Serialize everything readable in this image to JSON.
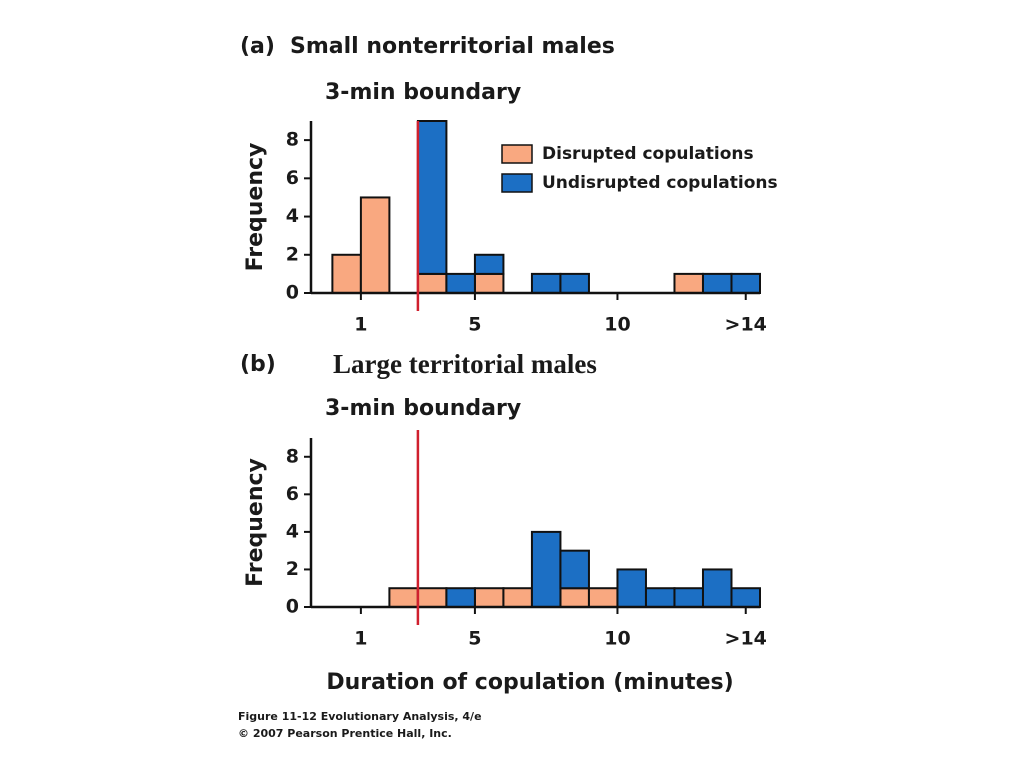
{
  "chart_data": [
    {
      "type": "histogram",
      "panel_label": "(a)",
      "title": "Small nonterritorial males",
      "annotation": "3-min boundary",
      "boundary": 3,
      "ylabel": "Frequency",
      "bins": [
        0,
        1,
        2,
        3,
        4,
        5,
        6,
        7,
        8,
        9,
        10,
        11,
        12,
        13,
        14,
        15
      ],
      "stacked": true,
      "legend": "top-right",
      "series": [
        {
          "name": "Disrupted copulations",
          "color": "#f9a880",
          "values": [
            2,
            5,
            0,
            1,
            0,
            1,
            0,
            0,
            0,
            0,
            0,
            0,
            1,
            0,
            0
          ]
        },
        {
          "name": "Undisrupted copulations",
          "color": "#1c6fc4",
          "values": [
            0,
            0,
            0,
            8,
            1,
            1,
            0,
            1,
            1,
            0,
            0,
            0,
            0,
            1,
            1
          ]
        }
      ],
      "xlim": [
        -0.75,
        15
      ],
      "ylim": [
        0,
        9
      ],
      "xticks": [
        1,
        5,
        10,
        {
          "value": 14.5,
          "label": ">14"
        }
      ],
      "yticks": [
        0,
        2,
        4,
        6,
        8
      ]
    },
    {
      "type": "histogram",
      "panel_label": "(b)",
      "title": "Large territorial males",
      "annotation": "3-min boundary",
      "boundary": 3,
      "ylabel": "Frequency",
      "xlabel": "Duration of copulation (minutes)",
      "bins": [
        0,
        1,
        2,
        3,
        4,
        5,
        6,
        7,
        8,
        9,
        10,
        11,
        12,
        13,
        14,
        15
      ],
      "stacked": true,
      "series": [
        {
          "name": "Disrupted copulations",
          "color": "#f9a880",
          "values": [
            0,
            0,
            1,
            1,
            0,
            1,
            1,
            0,
            1,
            1,
            0,
            0,
            0,
            0,
            0
          ]
        },
        {
          "name": "Undisrupted copulations",
          "color": "#1c6fc4",
          "values": [
            0,
            0,
            0,
            0,
            1,
            0,
            0,
            4,
            2,
            0,
            2,
            1,
            1,
            2,
            1
          ]
        }
      ],
      "xlim": [
        -0.75,
        15
      ],
      "ylim": [
        0,
        9
      ],
      "xticks": [
        1,
        5,
        10,
        {
          "value": 14.5,
          "label": ">14"
        }
      ],
      "yticks": [
        0,
        2,
        4,
        6,
        8
      ]
    }
  ],
  "credits": [
    "Figure 11-12 Evolutionary Analysis, 4/e",
    "© 2007 Pearson Prentice Hall, Inc."
  ]
}
